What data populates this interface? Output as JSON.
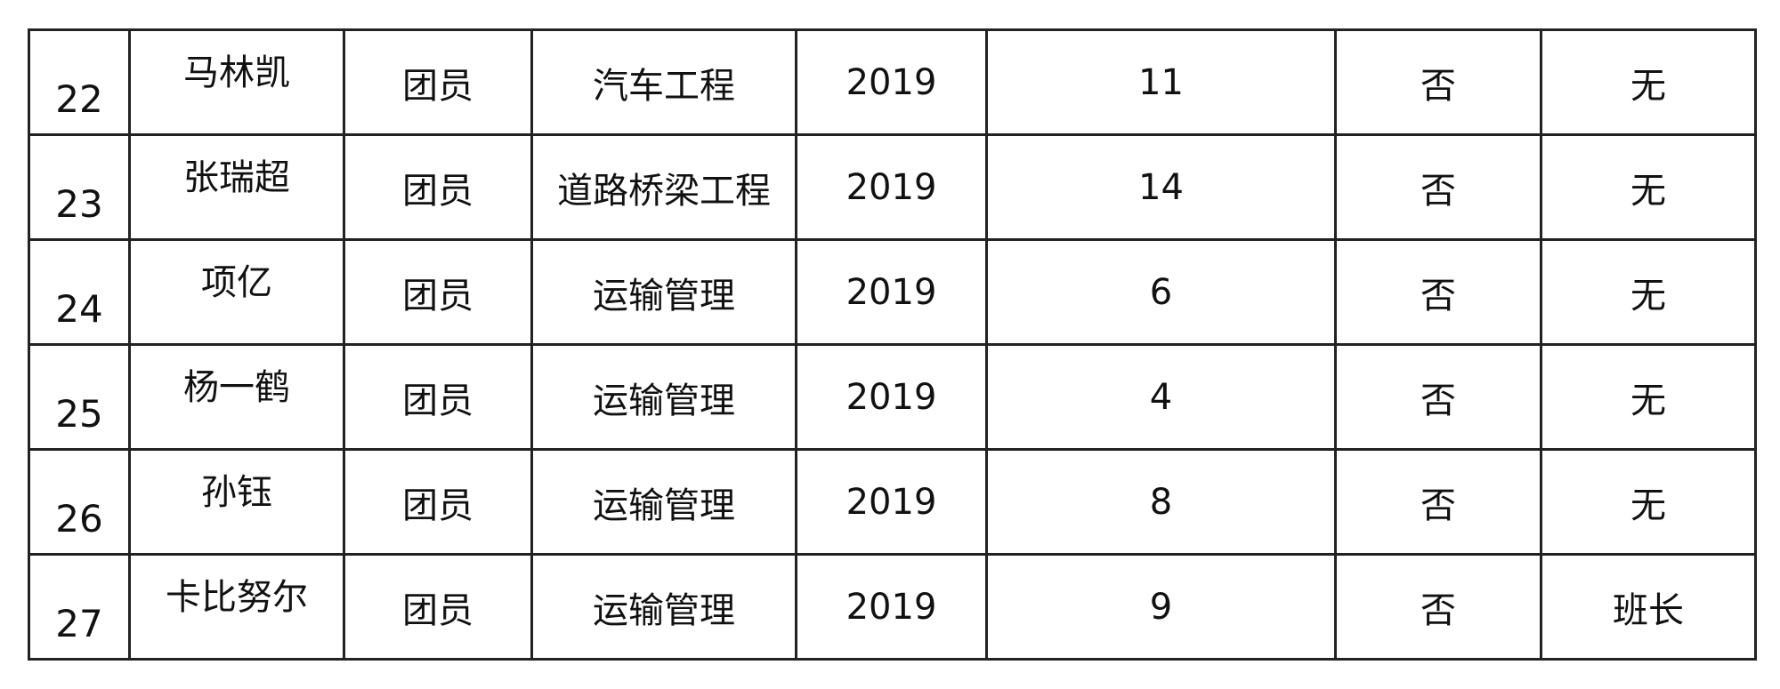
{
  "rows": [
    {
      "no": "22",
      "name": "马林凯",
      "status": "团员",
      "major": "汽车工程",
      "year": "2019",
      "count": "11",
      "flag": "否",
      "role": "无"
    },
    {
      "no": "23",
      "name": "张瑞超",
      "status": "团员",
      "major": "道路桥梁工程",
      "year": "2019",
      "count": "14",
      "flag": "否",
      "role": "无"
    },
    {
      "no": "24",
      "name": "项亿",
      "status": "团员",
      "major": "运输管理",
      "year": "2019",
      "count": "6",
      "flag": "否",
      "role": "无"
    },
    {
      "no": "25",
      "name": "杨一鹤",
      "status": "团员",
      "major": "运输管理",
      "year": "2019",
      "count": "4",
      "flag": "否",
      "role": "无"
    },
    {
      "no": "26",
      "name": "孙钰",
      "status": "团员",
      "major": "运输管理",
      "year": "2019",
      "count": "8",
      "flag": "否",
      "role": "无"
    },
    {
      "no": "27",
      "name": "卡比努尔",
      "status": "团员",
      "major": "运输管理",
      "year": "2019",
      "count": "9",
      "flag": "否",
      "role": "班长"
    }
  ]
}
